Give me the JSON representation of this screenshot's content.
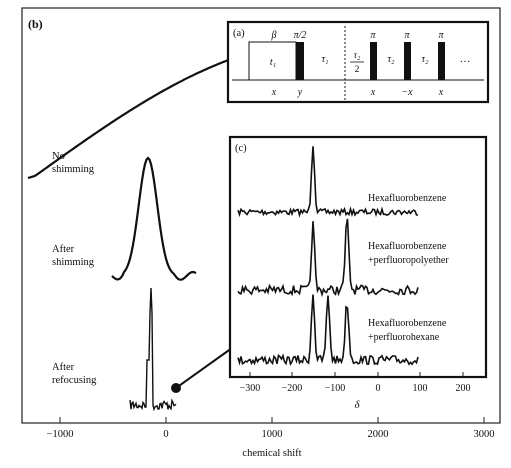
{
  "panel_b": {
    "label": "(b)",
    "traces": [
      {
        "line1": "No",
        "line2": "shimming"
      },
      {
        "line1": "After",
        "line2": "shimming"
      },
      {
        "line1": "After",
        "line2": "refocusing"
      }
    ],
    "x_axis": {
      "label": "chemical shift",
      "ticks": [
        "−1000",
        "0",
        "1000",
        "2000",
        "3000"
      ]
    }
  },
  "panel_a": {
    "label": "(a)",
    "top": [
      "β",
      "π/2",
      "π",
      "π",
      "π"
    ],
    "t1": "t₁",
    "tau1": "τ₁",
    "tau2_half_num": "τ₂",
    "tau2_half_den": "2",
    "tau2": "τ₂",
    "ellipsis": "…",
    "phases": [
      "x",
      "y",
      "x",
      "−x",
      "x"
    ]
  },
  "panel_c": {
    "label": "(c)",
    "spectra": [
      {
        "line1": "Hexafluorobenzene",
        "line2": ""
      },
      {
        "line1": "Hexafluorobenzene",
        "line2": "+perfluoropolyether"
      },
      {
        "line1": "Hexafluorobenzene",
        "line2": "+perfluorohexane"
      }
    ],
    "x_axis": {
      "label": "δ",
      "ticks": [
        "−300",
        "−200",
        "−100",
        "0",
        "100",
        "200"
      ]
    }
  }
}
